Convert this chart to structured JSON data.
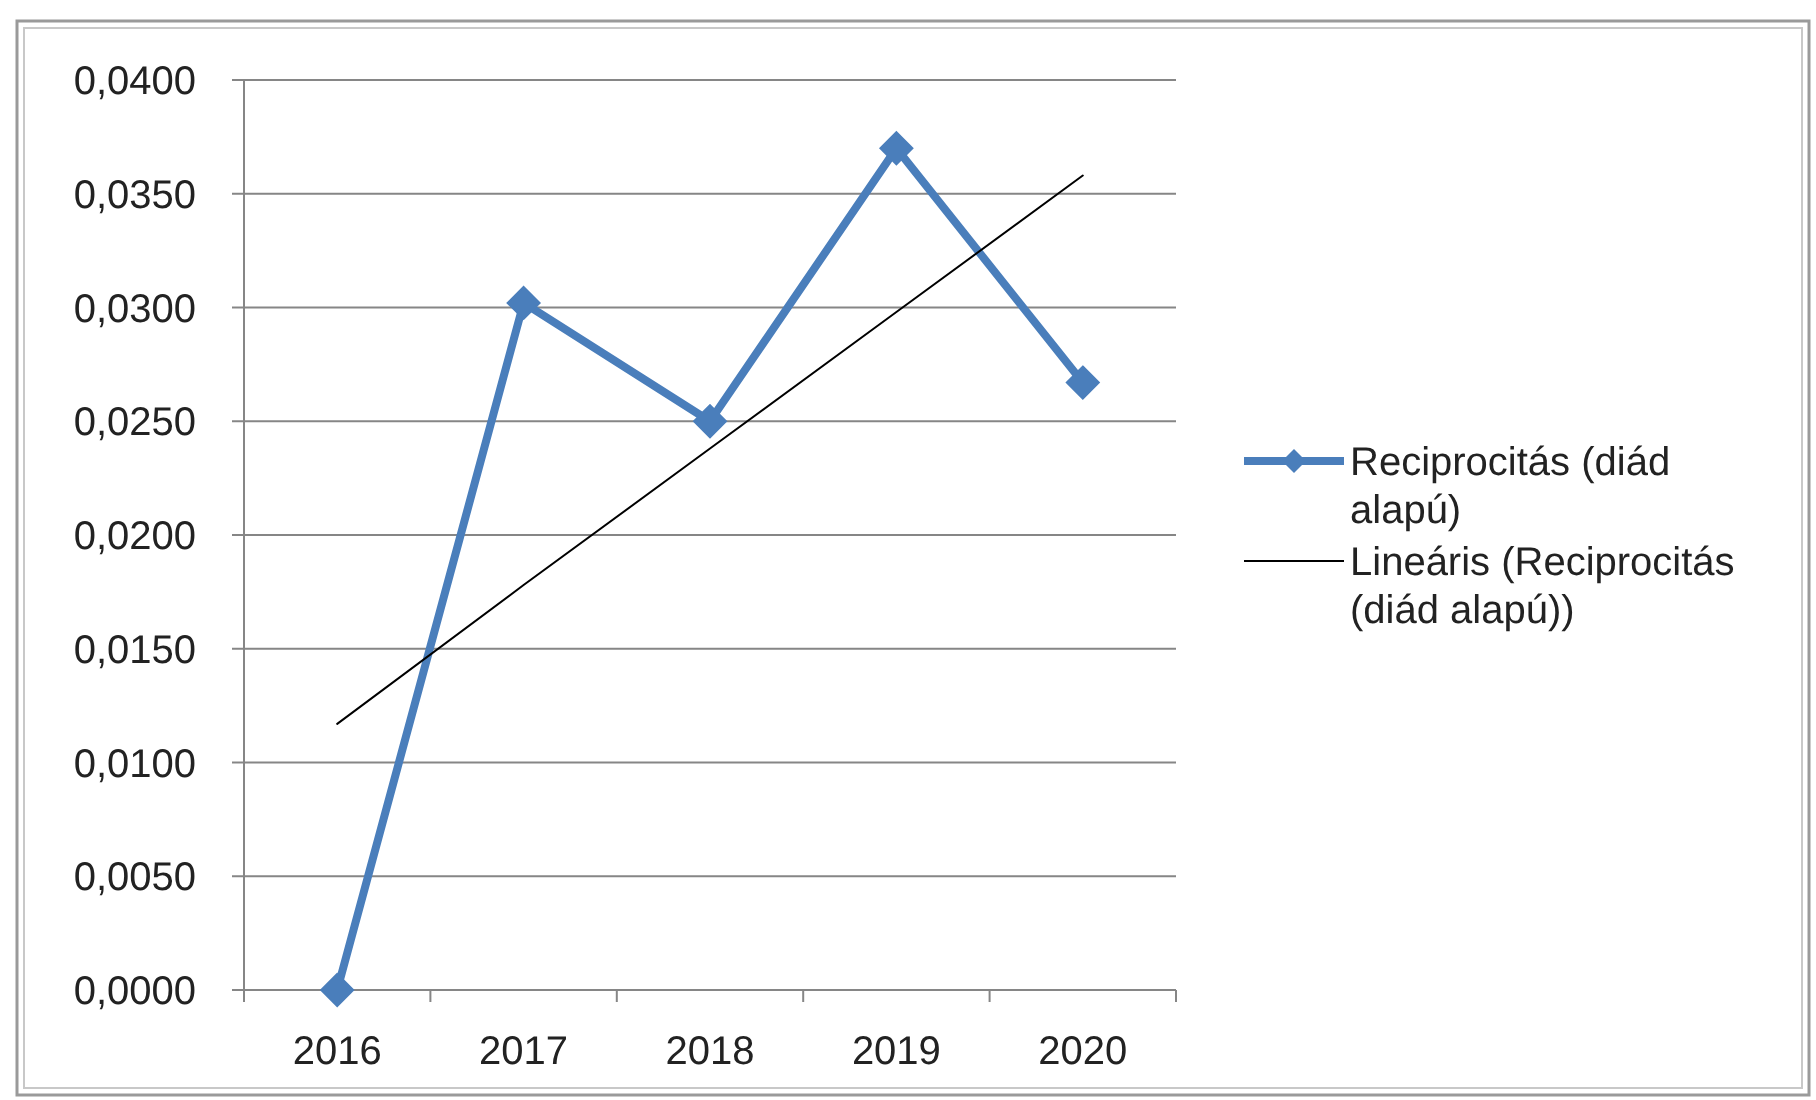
{
  "chart_data": {
    "type": "line",
    "categories": [
      "2016",
      "2017",
      "2018",
      "2019",
      "2020"
    ],
    "series": [
      {
        "name": "Reciprocitás (diád alapú)",
        "color": "#4a7ebb",
        "values": [
          0,
          0.0302,
          0.025,
          0.037,
          0.0267
        ]
      },
      {
        "name": "Lineáris (Reciprocitás (diád alapú))",
        "type": "line",
        "color": "#000000",
        "values": [
          0.0117,
          0.0178,
          0.0238,
          0.0298,
          0.0358
        ],
        "marker": "none"
      }
    ],
    "ylim": [
      0,
      0.04
    ],
    "yticks": [
      {
        "value": 0,
        "label": "0,0000"
      },
      {
        "value": 0.005,
        "label": "0,0050"
      },
      {
        "value": 0.01,
        "label": "0,0100"
      },
      {
        "value": 0.015,
        "label": "0,0150"
      },
      {
        "value": 0.02,
        "label": "0,0200"
      },
      {
        "value": 0.025,
        "label": "0,0250"
      },
      {
        "value": 0.03,
        "label": "0,0300"
      },
      {
        "value": 0.035,
        "label": "0,0350"
      },
      {
        "value": 0.04,
        "label": "0,0400"
      }
    ],
    "grid": "y",
    "legend": "right",
    "marker": "diamond"
  }
}
